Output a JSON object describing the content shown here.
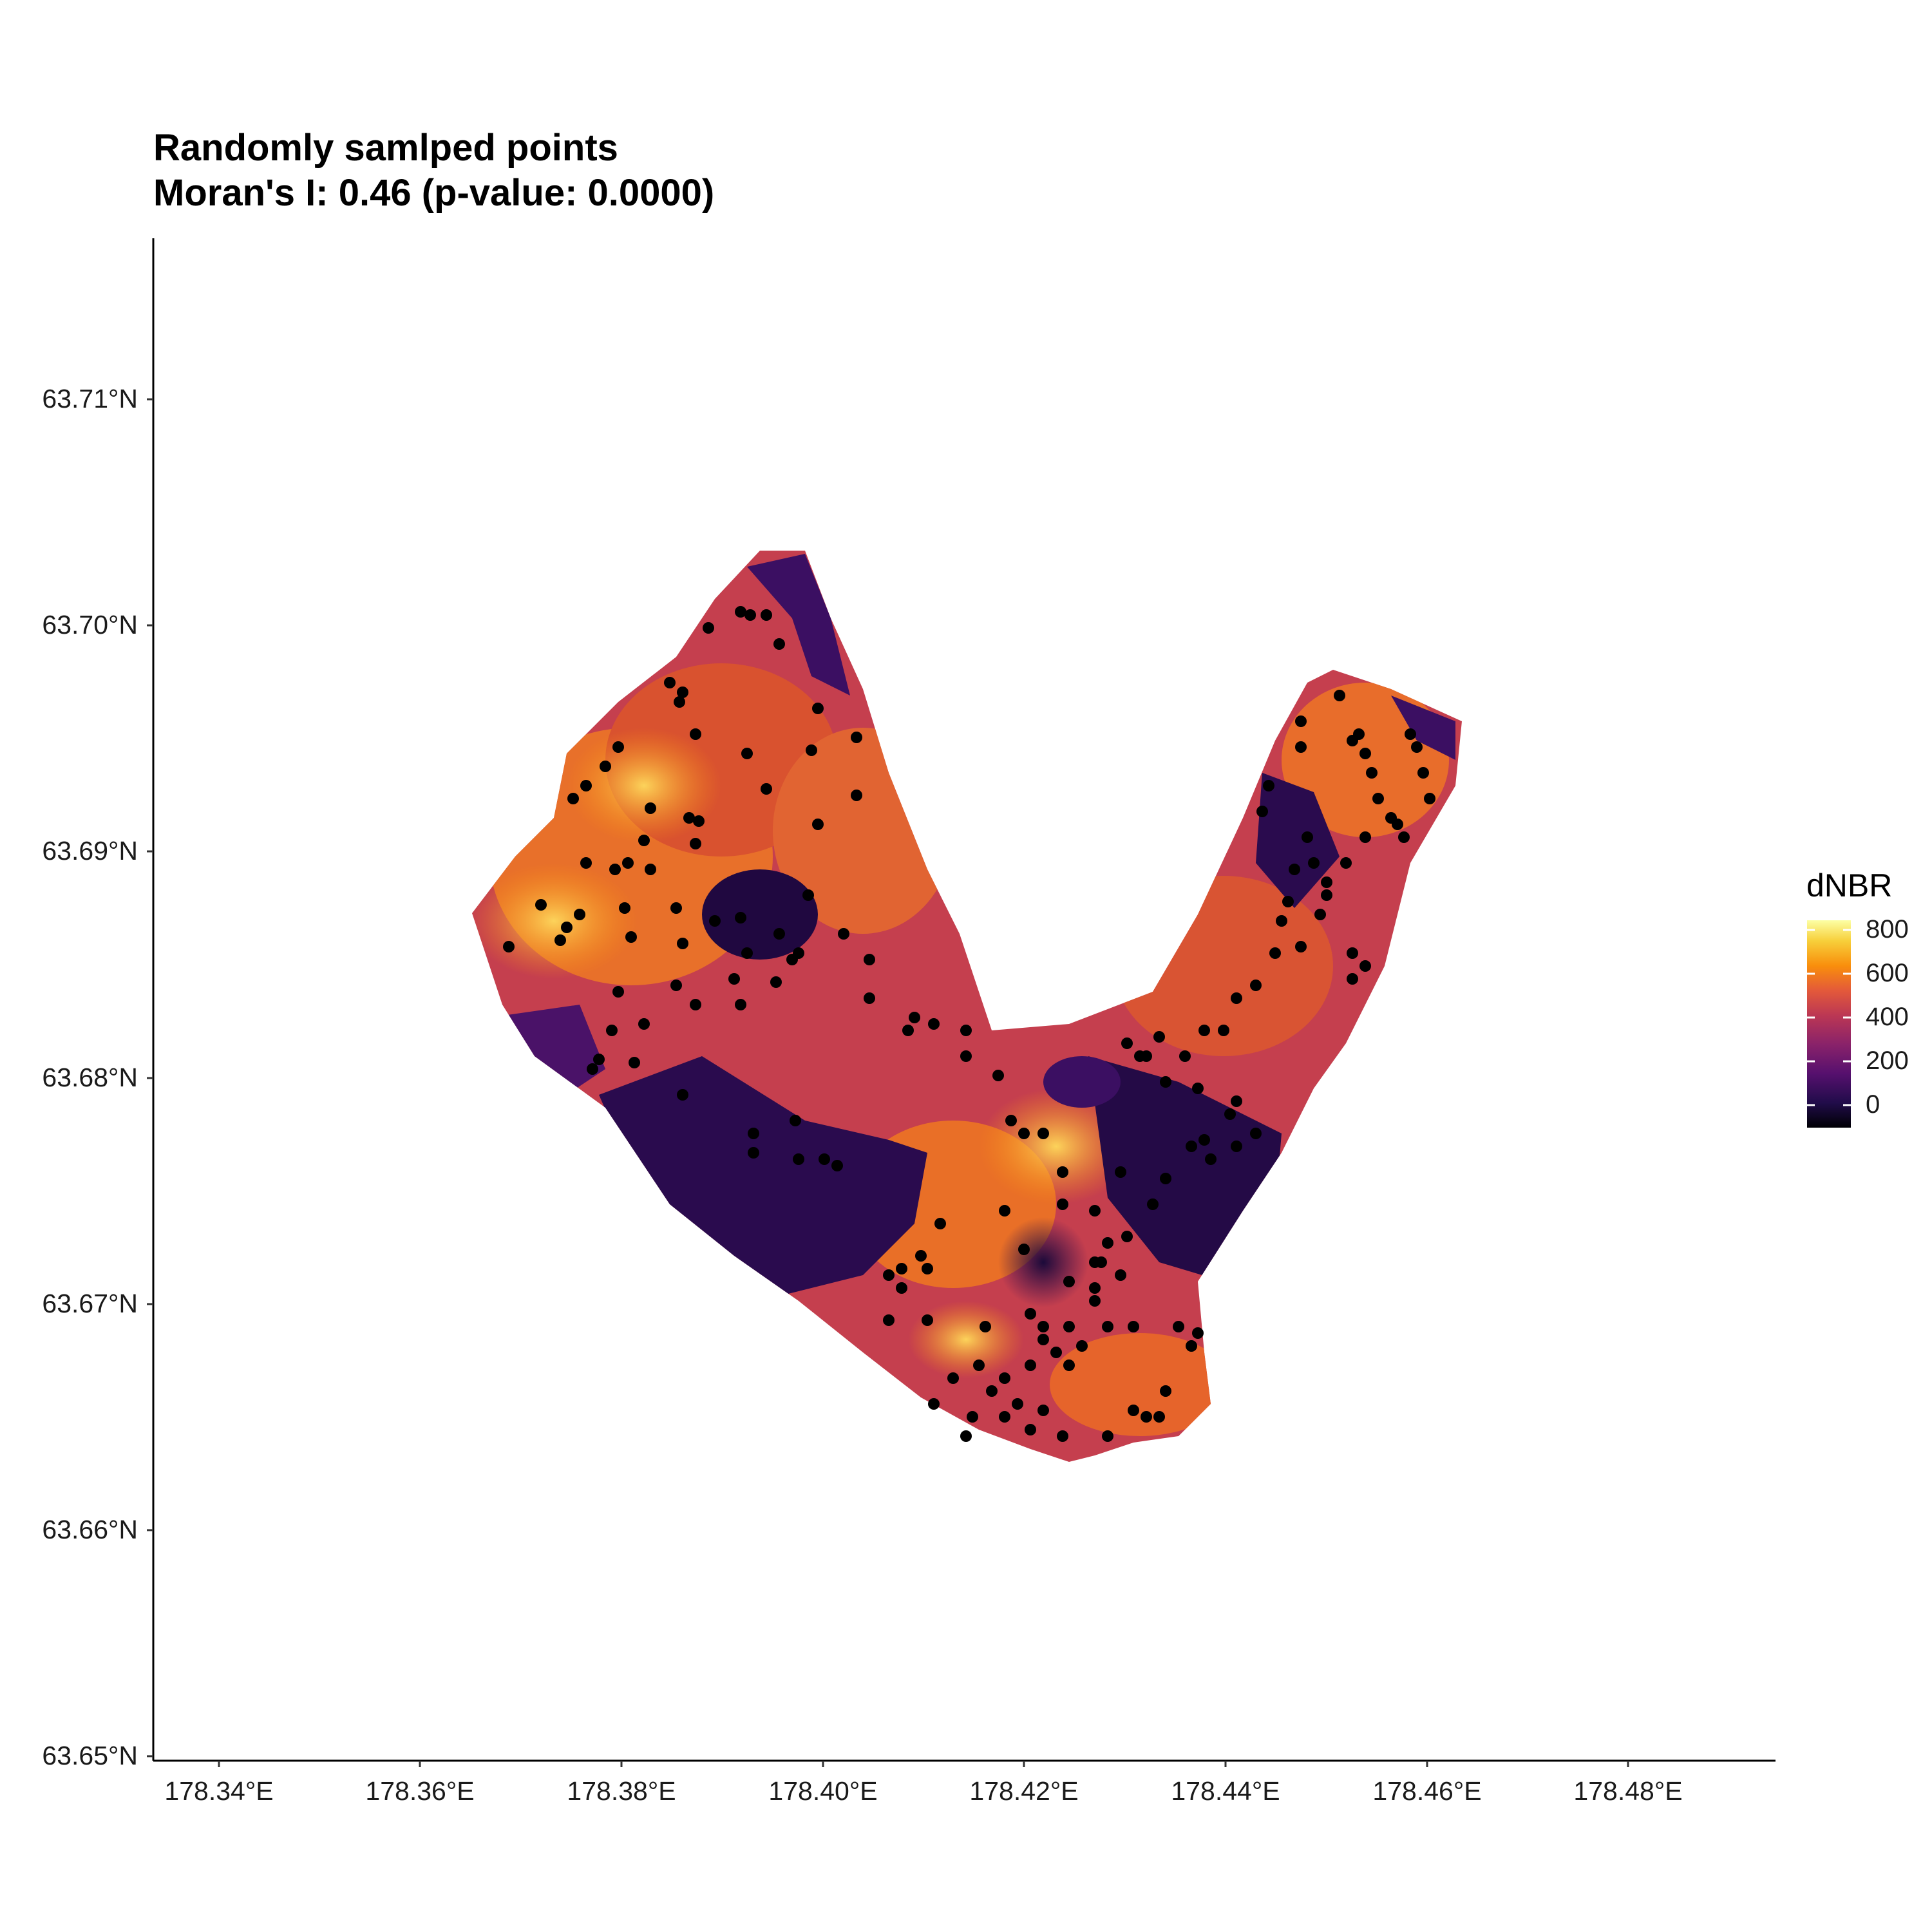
{
  "title": {
    "line1": "Randomly samlped points",
    "line2": "Moran's I: 0.46 (p-value: 0.0000)"
  },
  "map": {
    "y_ticks": [
      "63.71°N",
      "63.70°N",
      "63.69°N",
      "63.68°N",
      "63.67°N",
      "63.66°N",
      "63.65°N"
    ],
    "x_ticks": [
      "178.34°E",
      "178.36°E",
      "178.38°E",
      "178.40°E",
      "178.42°E",
      "178.44°E",
      "178.46°E",
      "178.48°E"
    ],
    "raster": "dNBR burn severity raster over a V-shaped burned area with an interior hole",
    "points_color": "#000000"
  },
  "legend": {
    "title": "dNBR",
    "labels": [
      "800",
      "600",
      "400",
      "200",
      "0"
    ],
    "palette": [
      "#000004",
      "#56106e",
      "#bb3754",
      "#f98e0c",
      "#fcffa4"
    ]
  }
}
